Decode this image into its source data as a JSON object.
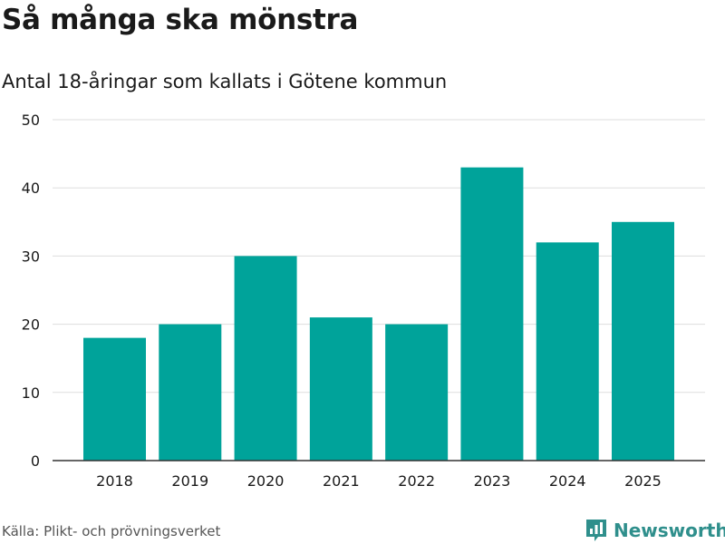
{
  "title": "Så många ska mönstra",
  "subtitle": "Antal 18-åringar som kallats i Götene kommun",
  "source": "Källa: Plikt- och prövningsverket",
  "brand": "Newsworthy",
  "colors": {
    "bar": "#00a39a",
    "grid": "#dddddd",
    "axis": "#333333",
    "brand": "#2f8f8c"
  },
  "chart_data": {
    "type": "bar",
    "title": "Så många ska mönstra",
    "subtitle": "Antal 18-åringar som kallats i Götene kommun",
    "xlabel": "",
    "ylabel": "",
    "categories": [
      "2018",
      "2019",
      "2020",
      "2021",
      "2022",
      "2023",
      "2024",
      "2025"
    ],
    "values": [
      18,
      20,
      30,
      21,
      20,
      43,
      32,
      35
    ],
    "ylim": [
      0,
      50
    ],
    "yticks": [
      0,
      10,
      20,
      30,
      40,
      50
    ],
    "grid": true
  }
}
